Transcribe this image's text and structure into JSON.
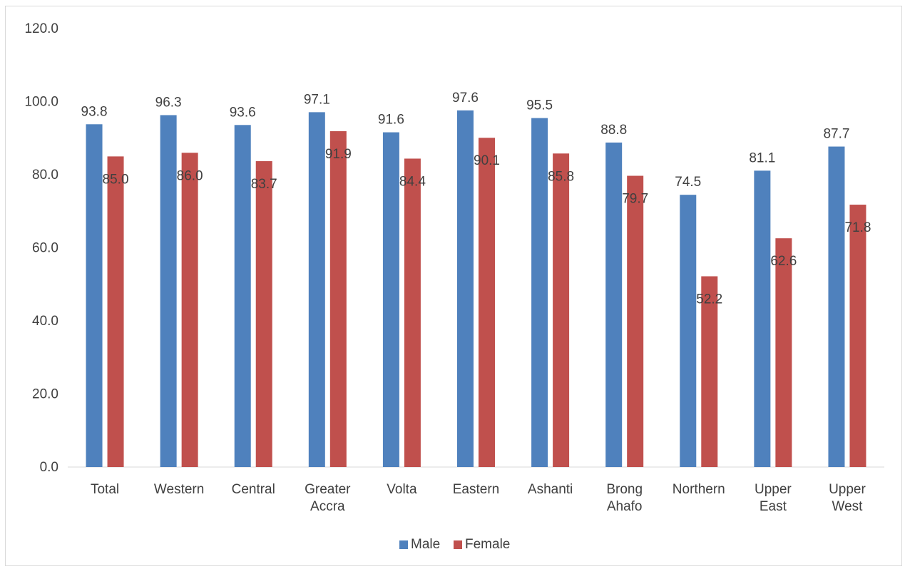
{
  "chart_data": {
    "type": "bar",
    "categories": [
      "Total",
      "Western",
      "Central",
      "Greater Accra",
      "Volta",
      "Eastern",
      "Ashanti",
      "Brong Ahafo",
      "Northern",
      "Upper East",
      "Upper West"
    ],
    "series": [
      {
        "name": "Male",
        "color": "#4F81BD",
        "values": [
          93.8,
          96.3,
          93.6,
          97.1,
          91.6,
          97.6,
          95.5,
          88.8,
          74.5,
          81.1,
          87.7
        ]
      },
      {
        "name": "Female",
        "color": "#C0504D",
        "values": [
          85.0,
          86.0,
          83.7,
          91.9,
          84.4,
          90.1,
          85.8,
          79.7,
          52.2,
          62.6,
          71.8
        ]
      }
    ],
    "yticks": [
      "0.0",
      "20.0",
      "40.0",
      "60.0",
      "80.0",
      "100.0",
      "120.0"
    ],
    "ylim": [
      0,
      120
    ],
    "title": "",
    "xlabel": "",
    "ylabel": "",
    "grid": false,
    "legend_position": "bottom"
  }
}
